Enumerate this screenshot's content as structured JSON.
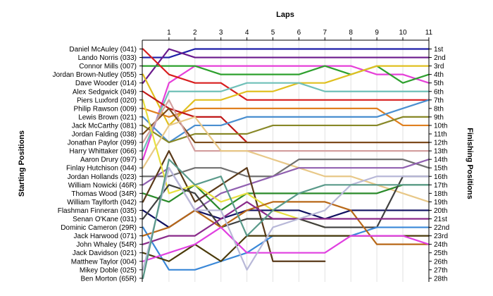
{
  "chart_data": {
    "type": "line",
    "title": "",
    "xlabel": "Laps",
    "ylabel_left": "Starting Positions",
    "ylabel_right": "Finishing Positions",
    "x_ticks": [
      "1",
      "2",
      "3",
      "4",
      "5",
      "6",
      "7",
      "8",
      "9",
      "10",
      "11"
    ],
    "xlim": [
      0,
      11
    ],
    "ylim": [
      1,
      28
    ],
    "grid": "vertical",
    "left_labels": [
      "Daniel McAuley (041)",
      "Lando Norris (033)",
      "Connor Mills (007)",
      "Jordan Brown-Nutley (055)",
      "Dave Wooder (014)",
      "Alex Sedgwick (049)",
      "Piers Luxford (020)",
      "Philip Rawson (009)",
      "Lewis Brown (021)",
      "Jack McCarthy (081)",
      "Jordan Falding (038)",
      "Jonathan Paylor (099)",
      "Harry Whittaker (066)",
      "Aaron Drury (097)",
      "Finlay Hutchison (044)",
      "Jordan Hollands (023)",
      "William Nowicki (46R)",
      "Thomas Wood (34R)",
      "William Taylforth (042)",
      "Flashman Finneran (035)",
      "Senan O'Kane (031)",
      "Dominic Cameron (29R)",
      "Jack Harwood (071)",
      "John Whaley (54R)",
      "Jack Davidson (021)",
      "Matthew Taylor (004)",
      "Mikey Doble (025)",
      "Ben Morton (65R)"
    ],
    "right_labels": [
      "1st",
      "2nd",
      "3rd",
      "4th",
      "5th",
      "6th",
      "7th",
      "8th",
      "9th",
      "10th",
      "11th",
      "12th",
      "13th",
      "14th",
      "15th",
      "16th",
      "17th",
      "18th",
      "19th",
      "20th",
      "21st",
      "22nd",
      "23rd",
      "24th",
      "25th",
      "26th",
      "27th",
      "28th"
    ],
    "series": [
      {
        "color": "#1f1fa8",
        "values": [
          2,
          2,
          1,
          1,
          1,
          1,
          1,
          1,
          1,
          1,
          1,
          1
        ]
      },
      {
        "color": "#6a1a8c",
        "values": [
          5,
          1,
          2,
          2,
          2,
          2,
          2,
          2,
          2,
          2,
          2,
          2
        ]
      },
      {
        "color": "#e640d8",
        "values": [
          14,
          5,
          3,
          3,
          3,
          3,
          3,
          3,
          3,
          4,
          4,
          5
        ]
      },
      {
        "color": "#2ea02e",
        "values": [
          3,
          3,
          3,
          4,
          4,
          4,
          4,
          3,
          4,
          3,
          5,
          4
        ]
      },
      {
        "color": "#d81e1e",
        "values": [
          1,
          4,
          5,
          5,
          7,
          7,
          7,
          7,
          7,
          7,
          7,
          7
        ]
      },
      {
        "color": "#e0c020",
        "values": [
          4,
          10,
          7,
          7,
          6,
          6,
          5,
          5,
          4,
          3,
          3,
          3
        ]
      },
      {
        "color": "#70c0b8",
        "values": [
          13,
          6,
          6,
          6,
          5,
          5,
          5,
          6,
          6,
          6,
          6,
          6
        ]
      },
      {
        "color": "#e08020",
        "values": [
          8,
          9,
          8,
          8,
          8,
          8,
          8,
          8,
          8,
          8,
          10,
          10
        ]
      },
      {
        "color": "#c01818",
        "values": [
          6,
          8,
          9,
          9,
          12,
          12,
          12,
          12,
          12,
          12,
          12,
          12
        ]
      },
      {
        "color": "#4a8fd0",
        "values": [
          9,
          12,
          10,
          10,
          9,
          9,
          9,
          9,
          9,
          9,
          8,
          7
        ]
      },
      {
        "color": "#888828",
        "values": [
          10,
          12,
          11,
          11,
          11,
          10,
          10,
          10,
          10,
          10,
          9,
          9
        ]
      },
      {
        "color": "#7a4a1a",
        "values": [
          11,
          8,
          12,
          12,
          12,
          12,
          12,
          12,
          12,
          12,
          12,
          12
        ]
      },
      {
        "color": "#d4a0a0",
        "values": [
          12,
          7,
          13,
          13,
          13,
          13,
          13,
          13,
          13,
          13,
          13,
          13
        ]
      },
      {
        "color": "#e8c888",
        "values": [
          15,
          10,
          9,
          13,
          13,
          14,
          15,
          16,
          16,
          17,
          18,
          19
        ]
      },
      {
        "color": "#707070",
        "values": [
          16,
          16,
          15,
          15,
          16,
          16,
          14,
          14,
          14,
          14,
          14,
          15
        ]
      },
      {
        "color": "#9060b0",
        "values": [
          17,
          15,
          20,
          18,
          17,
          16,
          15,
          15,
          15,
          15,
          15,
          14
        ]
      },
      {
        "color": "#2a8a2a",
        "values": [
          18,
          19,
          17,
          20,
          18,
          18,
          18,
          18,
          18,
          18,
          17,
          17
        ]
      },
      {
        "color": "#5a3a1a",
        "values": [
          19,
          13,
          19,
          17,
          15,
          26,
          26,
          26
        ]
      },
      {
        "color": "#e8e040",
        "values": [
          7,
          18,
          17,
          19,
          18,
          20,
          21,
          22
        ]
      },
      {
        "color": "#101060",
        "values": [
          20,
          22,
          20,
          21,
          20,
          20,
          20,
          21,
          20,
          20,
          20,
          20
        ]
      },
      {
        "color": "#404040",
        "values": [
          21,
          17,
          18,
          22,
          21,
          21,
          21,
          22,
          22,
          22,
          16,
          16
        ]
      },
      {
        "color": "#3a88d8",
        "values": [
          22,
          27,
          27,
          26,
          25,
          23,
          23,
          23,
          23,
          22,
          22,
          22
        ]
      },
      {
        "color": "#b86818",
        "values": [
          23,
          22,
          20,
          22,
          20,
          19,
          19,
          19,
          20,
          24,
          24,
          24
        ]
      },
      {
        "color": "#8a2a8a",
        "values": [
          24,
          23,
          23,
          21,
          19,
          21,
          21,
          21,
          21,
          21,
          21,
          21
        ]
      },
      {
        "color": "#4a3a0a",
        "values": [
          25,
          26,
          24,
          26,
          23,
          23,
          23,
          23,
          23,
          23,
          23,
          23
        ]
      },
      {
        "color": "#e040e0",
        "values": [
          26,
          25,
          24,
          22,
          25,
          25,
          25,
          25,
          23,
          23,
          23,
          24
        ]
      },
      {
        "color": "#b8b8d8",
        "values": [
          27,
          15,
          20,
          20,
          27,
          22,
          21,
          20,
          17,
          16,
          16,
          16
        ]
      },
      {
        "color": "#5a9a8a",
        "values": [
          28,
          14,
          17,
          16,
          23,
          20,
          18,
          17,
          17,
          17,
          17,
          17
        ]
      }
    ]
  }
}
